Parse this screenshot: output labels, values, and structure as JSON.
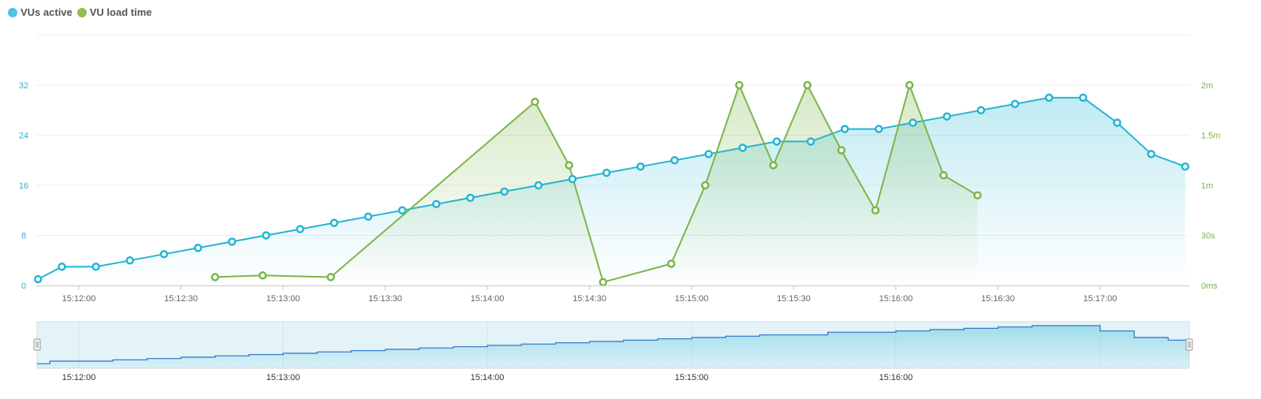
{
  "legend": {
    "vus_label": "VUs active",
    "load_label": "VU load time",
    "vus_color": "#23b5d3",
    "load_color": "#7ab648"
  },
  "chart_data": {
    "type": "line",
    "x_ticks": [
      "15:12:00",
      "15:12:30",
      "15:13:00",
      "15:13:30",
      "15:14:00",
      "15:14:30",
      "15:15:00",
      "15:15:30",
      "15:16:00",
      "15:16:30",
      "15:17:00"
    ],
    "y_left": {
      "label": "",
      "ticks": [
        "0",
        "8",
        "16",
        "24",
        "32"
      ],
      "range": [
        0,
        40
      ]
    },
    "y_right": {
      "label": "",
      "ticks": [
        "0ms",
        "30s",
        "1m",
        "1.5m",
        "2m"
      ],
      "range_seconds": [
        0,
        150
      ]
    },
    "series": [
      {
        "name": "VUs active",
        "axis": "left",
        "color": "#23b5d3",
        "x_seconds": [
          -12,
          -5,
          5,
          15,
          25,
          35,
          45,
          55,
          65,
          75,
          85,
          95,
          105,
          115,
          125,
          135,
          145,
          155,
          165,
          175,
          185,
          195,
          205,
          215,
          225,
          235,
          245,
          255,
          265,
          275,
          285,
          295,
          305,
          315,
          325
        ],
        "values": [
          1,
          3,
          3,
          4,
          5,
          6,
          7,
          8,
          9,
          10,
          11,
          12,
          13,
          14,
          15,
          16,
          17,
          18,
          19,
          20,
          21,
          22,
          23,
          23,
          25,
          25,
          26,
          27,
          28,
          29,
          30,
          30,
          26,
          21,
          19
        ]
      },
      {
        "name": "VU load time",
        "axis": "right",
        "color": "#7ab648",
        "x_seconds": [
          40,
          54,
          74,
          134,
          144,
          154,
          174,
          184,
          194,
          204,
          214,
          224,
          234,
          244,
          254,
          264
        ],
        "values_seconds": [
          5,
          6,
          5,
          110,
          72,
          2,
          13,
          60,
          120,
          72,
          120,
          81,
          45,
          120,
          66,
          54
        ]
      }
    ]
  },
  "navigator": {
    "x_ticks": [
      "15:12:00",
      "15:13:00",
      "15:14:00",
      "15:15:00",
      "15:16:00"
    ]
  }
}
